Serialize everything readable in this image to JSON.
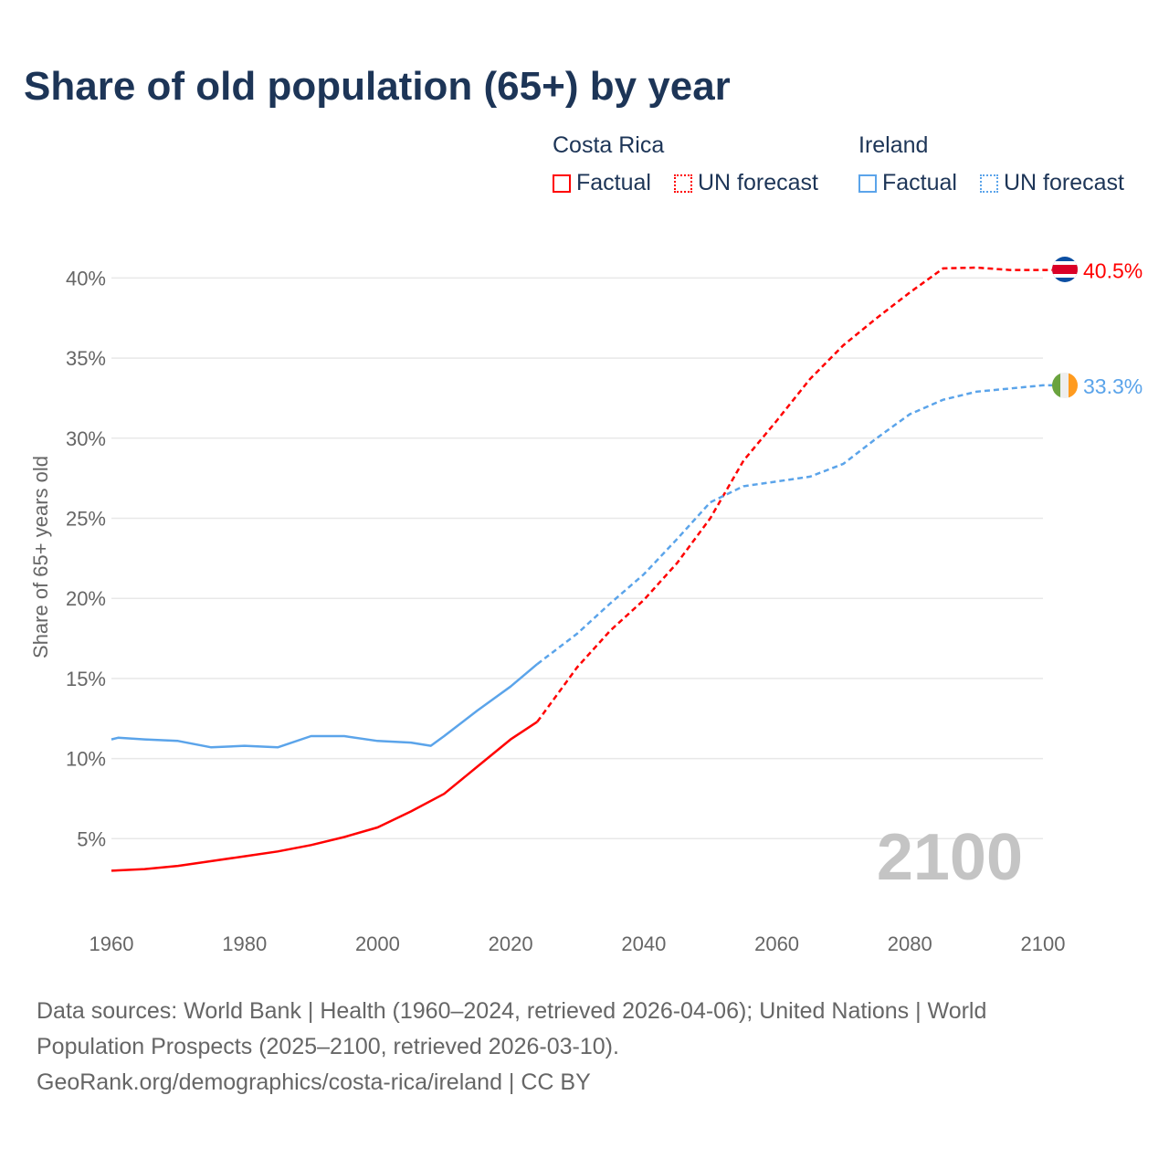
{
  "title": "Share of old population (65+) by year",
  "legend": {
    "countries": [
      {
        "name": "Costa Rica",
        "color": "#ff0000",
        "factual": "Factual",
        "forecast": "UN forecast"
      },
      {
        "name": "Ireland",
        "color": "#5ba4ea",
        "factual": "Factual",
        "forecast": "UN forecast"
      }
    ]
  },
  "year_label": "2100",
  "source": {
    "line1": "Data sources: World Bank | Health (1960–2024, retrieved 2026-04-06); United Nations | World",
    "line2": "Population Prospects (2025–2100, retrieved 2026-03-10).",
    "line3": "GeoRank.org/demographics/costa-rica/ireland | CC BY"
  },
  "chart_data": {
    "type": "line",
    "title": "Share of old population (65+) by year",
    "xlabel": "",
    "ylabel": "Share of 65+ years old",
    "xlim": [
      1960,
      2100
    ],
    "ylim": [
      0,
      42
    ],
    "x_ticks": [
      1960,
      1980,
      2000,
      2020,
      2040,
      2060,
      2080,
      2100
    ],
    "x_tick_labels": [
      "1960",
      "1980",
      "2000",
      "2020",
      "2040",
      "2060",
      "2080",
      "2100"
    ],
    "y_ticks": [
      5,
      10,
      15,
      20,
      25,
      30,
      35,
      40
    ],
    "y_tick_labels": [
      "5%",
      "10%",
      "15%",
      "20%",
      "25%",
      "30%",
      "35%",
      "40%"
    ],
    "grid": true,
    "legend_position": "top-right",
    "forecast_start": 2024,
    "series": [
      {
        "name": "Costa Rica",
        "color": "#ff0000",
        "end_label": "40.5%",
        "x": [
          1960,
          1965,
          1970,
          1975,
          1980,
          1985,
          1990,
          1995,
          2000,
          2005,
          2010,
          2015,
          2020,
          2024,
          2030,
          2035,
          2040,
          2045,
          2050,
          2055,
          2060,
          2065,
          2070,
          2075,
          2080,
          2085,
          2090,
          2095,
          2100
        ],
        "values": [
          3.0,
          3.1,
          3.3,
          3.6,
          3.9,
          4.2,
          4.6,
          5.1,
          5.7,
          6.7,
          7.8,
          9.5,
          11.2,
          12.3,
          15.7,
          18.0,
          19.9,
          22.2,
          25.0,
          28.6,
          31.1,
          33.7,
          35.8,
          37.5,
          39.1,
          40.6,
          40.65,
          40.5,
          40.5
        ]
      },
      {
        "name": "Ireland",
        "color": "#5ba4ea",
        "end_label": "33.3%",
        "x": [
          1960,
          1961,
          1965,
          1970,
          1975,
          1980,
          1985,
          1990,
          1995,
          2000,
          2005,
          2008,
          2010,
          2015,
          2020,
          2024,
          2030,
          2035,
          2040,
          2045,
          2050,
          2055,
          2060,
          2065,
          2070,
          2075,
          2080,
          2085,
          2090,
          2095,
          2100
        ],
        "values": [
          11.2,
          11.3,
          11.2,
          11.1,
          10.7,
          10.8,
          10.7,
          11.4,
          11.4,
          11.1,
          11.0,
          10.8,
          11.4,
          13.0,
          14.5,
          15.9,
          17.8,
          19.7,
          21.5,
          23.7,
          26.0,
          27.0,
          27.3,
          27.6,
          28.4,
          30.0,
          31.5,
          32.4,
          32.9,
          33.1,
          33.3
        ]
      }
    ]
  }
}
